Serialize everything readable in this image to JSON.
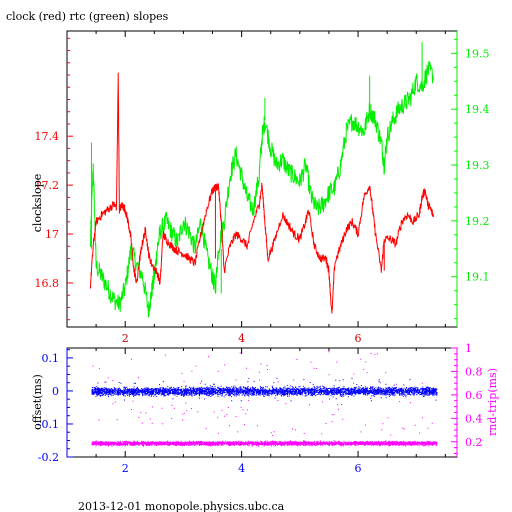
{
  "page": {
    "title": "clock (red) rtc (green) slopes",
    "footer": "2013-12-01 monopole.physics.ubc.ca"
  },
  "colors": {
    "clock": "#ff0000",
    "rtc": "#00ee00",
    "offset": "#0000ff",
    "rnd_trip": "#ff00ff",
    "axis": "#000000"
  },
  "chart_data": [
    {
      "type": "line",
      "title": "clock (red) rtc (green) slopes",
      "xlabel": "",
      "ylabel": "clockslope",
      "y2label": "",
      "xlim": [
        1.0,
        7.7
      ],
      "ylim": [
        16.62,
        17.83
      ],
      "y2lim": [
        19.01,
        19.54
      ],
      "xticks": [
        "2",
        "4",
        "6"
      ],
      "yticks": [
        "16.8",
        "17",
        "17.2",
        "17.4"
      ],
      "y2ticks": [
        "19.1",
        "19.2",
        "19.3",
        "19.4",
        "19.5"
      ],
      "grid": false,
      "series": [
        {
          "name": "clock (red)",
          "axis": "left",
          "color": "#ff0000",
          "points": [
            [
              1.4,
              16.78
            ],
            [
              1.45,
              16.95
            ],
            [
              1.5,
              17.05
            ],
            [
              1.6,
              17.08
            ],
            [
              1.7,
              17.1
            ],
            [
              1.8,
              17.12
            ],
            [
              1.85,
              17.11
            ],
            [
              1.88,
              17.65
            ],
            [
              1.9,
              17.1
            ],
            [
              1.95,
              17.12
            ],
            [
              2.0,
              17.1
            ],
            [
              2.05,
              17.05
            ],
            [
              2.1,
              16.98
            ],
            [
              2.15,
              16.85
            ],
            [
              2.2,
              16.8
            ],
            [
              2.25,
              16.9
            ],
            [
              2.3,
              16.97
            ],
            [
              2.35,
              17.02
            ],
            [
              2.4,
              16.92
            ],
            [
              2.45,
              16.88
            ],
            [
              2.55,
              16.84
            ],
            [
              2.6,
              16.8
            ],
            [
              2.65,
              17.0
            ],
            [
              2.7,
              16.98
            ],
            [
              2.8,
              16.95
            ],
            [
              2.9,
              16.93
            ],
            [
              3.0,
              16.92
            ],
            [
              3.1,
              16.9
            ],
            [
              3.2,
              16.88
            ],
            [
              3.3,
              17.0
            ],
            [
              3.4,
              17.1
            ],
            [
              3.5,
              17.18
            ],
            [
              3.6,
              17.2
            ],
            [
              3.65,
              17.05
            ],
            [
              3.7,
              16.85
            ],
            [
              3.8,
              16.95
            ],
            [
              3.9,
              17.0
            ],
            [
              4.0,
              16.98
            ],
            [
              4.1,
              16.95
            ],
            [
              4.2,
              17.05
            ],
            [
              4.3,
              17.12
            ],
            [
              4.35,
              17.2
            ],
            [
              4.4,
              17.05
            ],
            [
              4.45,
              16.9
            ],
            [
              4.55,
              16.96
            ],
            [
              4.7,
              17.08
            ],
            [
              4.8,
              17.04
            ],
            [
              4.9,
              17.0
            ],
            [
              5.0,
              16.98
            ],
            [
              5.1,
              17.05
            ],
            [
              5.15,
              17.1
            ],
            [
              5.25,
              16.95
            ],
            [
              5.35,
              16.9
            ],
            [
              5.45,
              16.9
            ],
            [
              5.5,
              16.85
            ],
            [
              5.55,
              16.67
            ],
            [
              5.6,
              16.88
            ],
            [
              5.7,
              16.95
            ],
            [
              5.8,
              17.02
            ],
            [
              5.9,
              17.05
            ],
            [
              6.0,
              17.0
            ],
            [
              6.1,
              17.15
            ],
            [
              6.2,
              17.2
            ],
            [
              6.25,
              17.1
            ],
            [
              6.3,
              17.0
            ],
            [
              6.4,
              16.85
            ],
            [
              6.45,
              16.98
            ],
            [
              6.55,
              16.98
            ],
            [
              6.65,
              16.96
            ],
            [
              6.75,
              17.05
            ],
            [
              6.85,
              17.08
            ],
            [
              6.95,
              17.05
            ],
            [
              7.05,
              17.08
            ],
            [
              7.1,
              17.15
            ],
            [
              7.15,
              17.18
            ],
            [
              7.2,
              17.12
            ],
            [
              7.25,
              17.1
            ],
            [
              7.3,
              17.07
            ]
          ],
          "spikes": [
            [
              1.88,
              17.65
            ],
            [
              3.55,
              16.9
            ],
            [
              5.55,
              16.67
            ],
            [
              6.45,
              16.85
            ]
          ]
        },
        {
          "name": "rtc (green)",
          "axis": "right",
          "color": "#00ee00",
          "points": [
            [
              1.4,
              19.15
            ],
            [
              1.45,
              19.3
            ],
            [
              1.5,
              19.12
            ],
            [
              1.6,
              19.1
            ],
            [
              1.7,
              19.08
            ],
            [
              1.8,
              19.06
            ],
            [
              1.9,
              19.05
            ],
            [
              2.0,
              19.08
            ],
            [
              2.1,
              19.15
            ],
            [
              2.2,
              19.12
            ],
            [
              2.3,
              19.1
            ],
            [
              2.4,
              19.04
            ],
            [
              2.45,
              19.07
            ],
            [
              2.5,
              19.1
            ],
            [
              2.55,
              19.15
            ],
            [
              2.6,
              19.18
            ],
            [
              2.7,
              19.2
            ],
            [
              2.8,
              19.18
            ],
            [
              2.9,
              19.16
            ],
            [
              3.0,
              19.2
            ],
            [
              3.1,
              19.18
            ],
            [
              3.2,
              19.15
            ],
            [
              3.3,
              19.2
            ],
            [
              3.4,
              19.14
            ],
            [
              3.5,
              19.1
            ],
            [
              3.55,
              19.08
            ],
            [
              3.6,
              19.15
            ],
            [
              3.7,
              19.2
            ],
            [
              3.8,
              19.28
            ],
            [
              3.9,
              19.32
            ],
            [
              4.0,
              19.28
            ],
            [
              4.1,
              19.24
            ],
            [
              4.2,
              19.22
            ],
            [
              4.3,
              19.28
            ],
            [
              4.35,
              19.35
            ],
            [
              4.4,
              19.38
            ],
            [
              4.5,
              19.33
            ],
            [
              4.6,
              19.3
            ],
            [
              4.7,
              19.31
            ],
            [
              4.8,
              19.29
            ],
            [
              4.9,
              19.28
            ],
            [
              5.0,
              19.27
            ],
            [
              5.1,
              19.3
            ],
            [
              5.2,
              19.24
            ],
            [
              5.3,
              19.22
            ],
            [
              5.4,
              19.23
            ],
            [
              5.5,
              19.25
            ],
            [
              5.6,
              19.26
            ],
            [
              5.7,
              19.3
            ],
            [
              5.8,
              19.36
            ],
            [
              5.9,
              19.38
            ],
            [
              6.0,
              19.37
            ],
            [
              6.1,
              19.36
            ],
            [
              6.2,
              19.4
            ],
            [
              6.3,
              19.38
            ],
            [
              6.4,
              19.34
            ],
            [
              6.45,
              19.3
            ],
            [
              6.5,
              19.35
            ],
            [
              6.6,
              19.38
            ],
            [
              6.7,
              19.4
            ],
            [
              6.8,
              19.41
            ],
            [
              6.9,
              19.42
            ],
            [
              7.0,
              19.45
            ],
            [
              7.1,
              19.44
            ],
            [
              7.2,
              19.47
            ],
            [
              7.3,
              19.46
            ]
          ],
          "spikes": [
            [
              1.42,
              19.34
            ],
            [
              3.65,
              19.07
            ],
            [
              4.4,
              19.42
            ],
            [
              6.2,
              19.46
            ],
            [
              7.1,
              19.52
            ]
          ]
        }
      ]
    },
    {
      "type": "scatter",
      "title": "",
      "xlabel": "",
      "ylabel": "offset(ms)",
      "y2label": "rnd-trip(ms)",
      "xlim": [
        1.0,
        7.7
      ],
      "ylim": [
        -0.2,
        0.13
      ],
      "y2lim": [
        0.07,
        1.0
      ],
      "xticks": [
        "2",
        "4",
        "6"
      ],
      "yticks": [
        "-0.2",
        "-0.1",
        "0",
        "0.1"
      ],
      "y2ticks": [
        "0.2",
        "0.4",
        "0.6",
        "0.8",
        "1"
      ],
      "grid": false,
      "series": [
        {
          "name": "offset(ms)",
          "axis": "left",
          "color": "#0000ff",
          "x_range": [
            1.42,
            7.35
          ],
          "band_center": 0.0,
          "band_halfwidth": 0.018,
          "outlier_range": [
            -0.03,
            0.04
          ]
        },
        {
          "name": "rnd-trip(ms)",
          "axis": "right",
          "color": "#ff00ff",
          "x_range": [
            1.42,
            7.35
          ],
          "band_center": 0.19,
          "band_halfwidth": 0.025,
          "outlier_range": [
            0.25,
            0.98
          ]
        }
      ]
    }
  ]
}
